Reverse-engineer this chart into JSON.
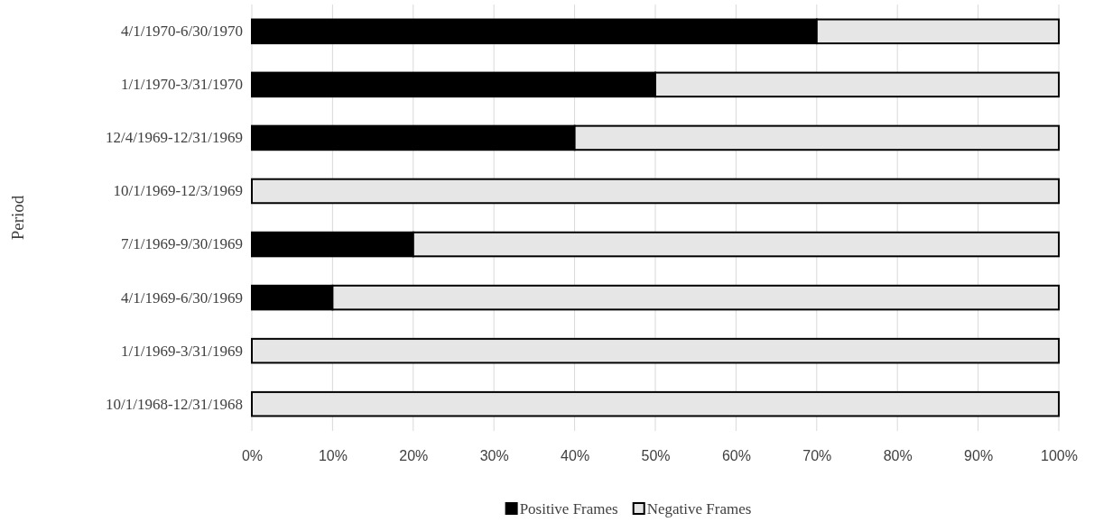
{
  "chart_data": {
    "type": "bar",
    "orientation": "horizontal",
    "stacked": true,
    "ylabel": "Period",
    "categories": [
      "4/1/1970-6/30/1970",
      "1/1/1970-3/31/1970",
      "12/4/1969-12/31/1969",
      "10/1/1969-12/3/1969",
      "7/1/1969-9/30/1969",
      "4/1/1969-6/30/1969",
      "1/1/1969-3/31/1969",
      "10/1/1968-12/31/1968"
    ],
    "series": [
      {
        "name": "Positive Frames",
        "color": "#000000",
        "values": [
          70,
          50,
          40,
          0,
          20,
          10,
          0,
          0
        ]
      },
      {
        "name": "Negative Frames",
        "color": "#e7e6e6",
        "values": [
          30,
          50,
          60,
          100,
          80,
          90,
          100,
          100
        ]
      }
    ],
    "xlim": [
      0,
      100
    ],
    "xticks": [
      {
        "value": 0,
        "label": "0%"
      },
      {
        "value": 10,
        "label": "10%"
      },
      {
        "value": 20,
        "label": "20%"
      },
      {
        "value": 30,
        "label": "30%"
      },
      {
        "value": 40,
        "label": "40%"
      },
      {
        "value": 50,
        "label": "50%"
      },
      {
        "value": 60,
        "label": "60%"
      },
      {
        "value": 70,
        "label": "70%"
      },
      {
        "value": 80,
        "label": "80%"
      },
      {
        "value": 90,
        "label": "90%"
      },
      {
        "value": 100,
        "label": "100%"
      }
    ],
    "grid": "x",
    "legend": "bottom"
  }
}
